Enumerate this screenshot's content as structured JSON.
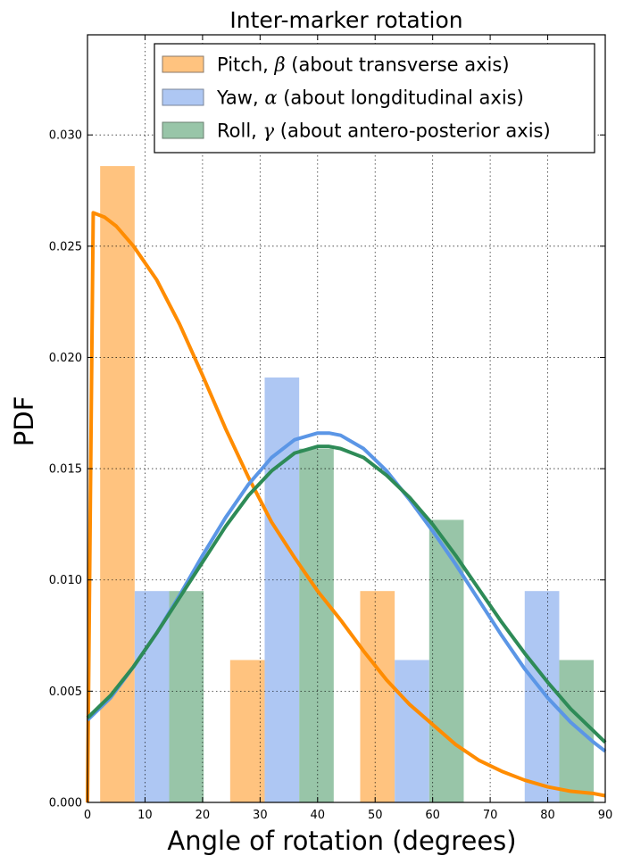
{
  "chart_data": {
    "type": "bar",
    "title": "Inter-marker rotation",
    "xlabel": "Angle of rotation (degrees)",
    "ylabel": "PDF",
    "xlim": [
      0,
      90
    ],
    "ylim": [
      0,
      0.0345
    ],
    "xticks": [
      0,
      10,
      20,
      30,
      40,
      50,
      60,
      70,
      80,
      90
    ],
    "yticks": [
      0.0,
      0.005,
      0.01,
      0.015,
      0.02,
      0.025,
      0.03
    ],
    "ytick_labels": [
      "0.000",
      "0.005",
      "0.010",
      "0.015",
      "0.020",
      "0.025",
      "0.030"
    ],
    "xtick_labels": [
      "0",
      "10",
      "20",
      "30",
      "40",
      "50",
      "60",
      "70",
      "80",
      "90"
    ],
    "grid": true,
    "legend_position": "top-right",
    "legend": [
      {
        "main": "Pitch, ",
        "symbol": "β",
        "rest": " (about transverse axis)",
        "color": "#ffc37f",
        "edge": "#8a7a6a"
      },
      {
        "main": "Yaw, ",
        "symbol": "α",
        "rest": " (about longditudinal axis)",
        "color": "#aec7f3",
        "edge": "#7a8699"
      },
      {
        "main": "Roll, ",
        "symbol": "γ",
        "rest": " (about antero-posterior axis)",
        "color": "#98c5a8",
        "edge": "#6a7f70"
      }
    ],
    "bar_series": [
      {
        "name": "Pitch",
        "color": "#ffc37f",
        "bars": [
          {
            "x0": 2.2,
            "x1": 8.2,
            "value": 0.0286
          },
          {
            "x0": 24.8,
            "x1": 30.8,
            "value": 0.0064
          },
          {
            "x0": 47.4,
            "x1": 53.4,
            "value": 0.0095
          }
        ]
      },
      {
        "name": "Yaw",
        "color": "#aec7f3",
        "bars": [
          {
            "x0": 8.2,
            "x1": 14.2,
            "value": 0.0095
          },
          {
            "x0": 30.8,
            "x1": 36.8,
            "value": 0.0191
          },
          {
            "x0": 53.4,
            "x1": 59.4,
            "value": 0.0064
          },
          {
            "x0": 76.0,
            "x1": 82.0,
            "value": 0.0095
          }
        ]
      },
      {
        "name": "Roll",
        "color": "#98c5a8",
        "bars": [
          {
            "x0": 14.2,
            "x1": 20.2,
            "value": 0.0095
          },
          {
            "x0": 36.8,
            "x1": 42.8,
            "value": 0.0159
          },
          {
            "x0": 59.4,
            "x1": 65.4,
            "value": 0.0127
          },
          {
            "x0": 82.0,
            "x1": 88.0,
            "value": 0.0064
          }
        ]
      }
    ],
    "line_series": [
      {
        "name": "Pitch",
        "color": "#ff8c00",
        "points": [
          [
            0,
            0
          ],
          [
            0.5,
            0.0135
          ],
          [
            1,
            0.0265
          ],
          [
            3,
            0.0263
          ],
          [
            5,
            0.0259
          ],
          [
            8,
            0.025
          ],
          [
            12,
            0.0235
          ],
          [
            16,
            0.0215
          ],
          [
            20,
            0.0192
          ],
          [
            24,
            0.0168
          ],
          [
            28,
            0.0146
          ],
          [
            32,
            0.0126
          ],
          [
            36,
            0.011
          ],
          [
            40,
            0.0095
          ],
          [
            44,
            0.0082
          ],
          [
            48,
            0.0068
          ],
          [
            52,
            0.0055
          ],
          [
            56,
            0.0044
          ],
          [
            60,
            0.0035
          ],
          [
            64,
            0.0026
          ],
          [
            68,
            0.0019
          ],
          [
            72,
            0.0014
          ],
          [
            76,
            0.001
          ],
          [
            80,
            0.0007
          ],
          [
            84,
            0.0005
          ],
          [
            88,
            0.0004
          ],
          [
            90,
            0.0003
          ]
        ]
      },
      {
        "name": "Yaw",
        "color": "#5b96e6",
        "points": [
          [
            0,
            0.0037
          ],
          [
            4,
            0.0047
          ],
          [
            8,
            0.0061
          ],
          [
            12,
            0.0076
          ],
          [
            16,
            0.0093
          ],
          [
            20,
            0.0111
          ],
          [
            24,
            0.0128
          ],
          [
            28,
            0.0143
          ],
          [
            32,
            0.0155
          ],
          [
            36,
            0.0163
          ],
          [
            40,
            0.0166
          ],
          [
            42,
            0.0166
          ],
          [
            44,
            0.0165
          ],
          [
            48,
            0.0159
          ],
          [
            52,
            0.0149
          ],
          [
            56,
            0.0136
          ],
          [
            60,
            0.0122
          ],
          [
            64,
            0.0107
          ],
          [
            68,
            0.0091
          ],
          [
            72,
            0.0075
          ],
          [
            76,
            0.006
          ],
          [
            80,
            0.0047
          ],
          [
            84,
            0.0036
          ],
          [
            88,
            0.0027
          ],
          [
            90,
            0.0023
          ]
        ]
      },
      {
        "name": "Roll",
        "color": "#2e8b57",
        "points": [
          [
            0,
            0.0038
          ],
          [
            4,
            0.0048
          ],
          [
            8,
            0.0061
          ],
          [
            12,
            0.0076
          ],
          [
            16,
            0.0092
          ],
          [
            20,
            0.0108
          ],
          [
            24,
            0.0124
          ],
          [
            28,
            0.0138
          ],
          [
            32,
            0.0149
          ],
          [
            36,
            0.0157
          ],
          [
            40,
            0.016
          ],
          [
            42,
            0.016
          ],
          [
            44,
            0.0159
          ],
          [
            48,
            0.0155
          ],
          [
            52,
            0.0147
          ],
          [
            56,
            0.0137
          ],
          [
            60,
            0.0125
          ],
          [
            64,
            0.0111
          ],
          [
            68,
            0.0096
          ],
          [
            72,
            0.0081
          ],
          [
            76,
            0.0067
          ],
          [
            80,
            0.0054
          ],
          [
            84,
            0.0042
          ],
          [
            88,
            0.0032
          ],
          [
            90,
            0.0027
          ]
        ]
      }
    ]
  }
}
